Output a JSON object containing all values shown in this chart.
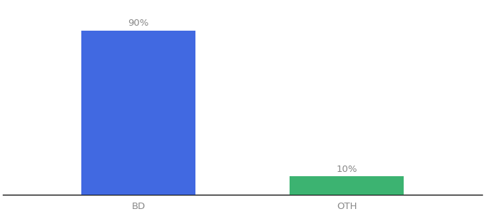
{
  "categories": [
    "BD",
    "OTH"
  ],
  "values": [
    90,
    10
  ],
  "bar_colors": [
    "#4169E1",
    "#3CB371"
  ],
  "labels": [
    "90%",
    "10%"
  ],
  "background_color": "#ffffff",
  "tick_color": "#888888",
  "label_fontsize": 9.5,
  "tick_fontsize": 9.5,
  "ylim": [
    0,
    105
  ],
  "bar_width": 0.55,
  "x_positions": [
    0,
    1
  ],
  "xlim": [
    -0.65,
    1.65
  ]
}
